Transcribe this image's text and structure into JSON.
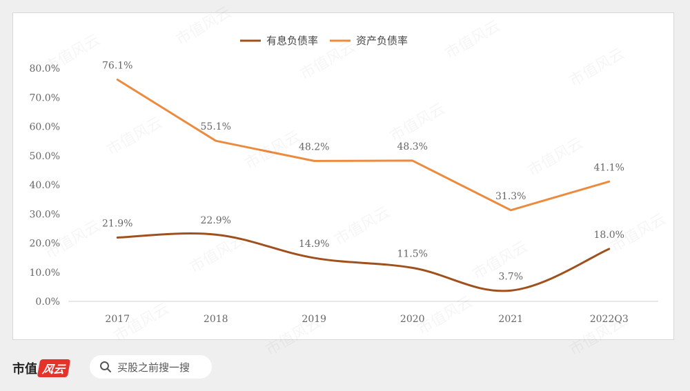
{
  "chart_data": {
    "type": "line",
    "categories": [
      "2017",
      "2018",
      "2019",
      "2020",
      "2021",
      "2022Q3"
    ],
    "series": [
      {
        "name": "有息负债率",
        "values": [
          21.9,
          22.9,
          14.9,
          11.5,
          3.7,
          18.0
        ],
        "labels": [
          "21.9%",
          "22.9%",
          "14.9%",
          "11.5%",
          "3.7%",
          "18.0%"
        ],
        "color": "#a0501c",
        "smooth": true
      },
      {
        "name": "资产负债率",
        "values": [
          76.1,
          55.1,
          48.2,
          48.3,
          31.3,
          41.1
        ],
        "labels": [
          "76.1%",
          "55.1%",
          "48.2%",
          "48.3%",
          "31.3%",
          "41.1%"
        ],
        "color": "#ec8a3d",
        "smooth": false
      }
    ],
    "ylim": [
      0,
      80
    ],
    "yticks": [
      "0.0%",
      "10.0%",
      "20.0%",
      "30.0%",
      "40.0%",
      "50.0%",
      "60.0%",
      "70.0%",
      "80.0%"
    ],
    "legend": "top-center",
    "grid": false
  },
  "footer": {
    "brand": "市值",
    "brand_mark": "风云",
    "search_text": "买股之前搜一搜",
    "search_icon": "search-icon"
  },
  "watermark": "市值风云"
}
